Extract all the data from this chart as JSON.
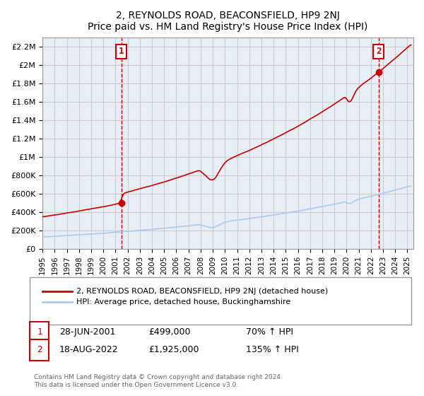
{
  "title": "2, REYNOLDS ROAD, BEACONSFIELD, HP9 2NJ",
  "subtitle": "Price paid vs. HM Land Registry's House Price Index (HPI)",
  "ylabel_ticks": [
    "£0",
    "£200K",
    "£400K",
    "£600K",
    "£800K",
    "£1M",
    "£1.2M",
    "£1.4M",
    "£1.6M",
    "£1.8M",
    "£2M",
    "£2.2M"
  ],
  "ytick_values": [
    0,
    200000,
    400000,
    600000,
    800000,
    1000000,
    1200000,
    1400000,
    1600000,
    1800000,
    2000000,
    2200000
  ],
  "ylim": [
    0,
    2300000
  ],
  "xlim_start": 1995.0,
  "xlim_end": 2025.5,
  "sale1_x": 2001.49,
  "sale1_y": 499000,
  "sale2_x": 2022.63,
  "sale2_y": 1925000,
  "line_color_red": "#cc0000",
  "line_color_blue": "#aaccee",
  "marker_color": "#cc0000",
  "grid_color": "#cccccc",
  "bg_color": "#e8eef5",
  "legend1": "2, REYNOLDS ROAD, BEACONSFIELD, HP9 2NJ (detached house)",
  "legend2": "HPI: Average price, detached house, Buckinghamshire",
  "annotation1_label": "1",
  "annotation1_date": "28-JUN-2001",
  "annotation1_price": "£499,000",
  "annotation1_hpi": "70% ↑ HPI",
  "annotation2_label": "2",
  "annotation2_date": "18-AUG-2022",
  "annotation2_price": "£1,925,000",
  "annotation2_hpi": "135% ↑ HPI",
  "footnote": "Contains HM Land Registry data © Crown copyright and database right 2024.\nThis data is licensed under the Open Government Licence v3.0.",
  "x_tick_years": [
    1995,
    1996,
    1997,
    1998,
    1999,
    2000,
    2001,
    2002,
    2003,
    2004,
    2005,
    2006,
    2007,
    2008,
    2009,
    2010,
    2011,
    2012,
    2013,
    2014,
    2015,
    2016,
    2017,
    2018,
    2019,
    2020,
    2021,
    2022,
    2023,
    2024,
    2025
  ]
}
